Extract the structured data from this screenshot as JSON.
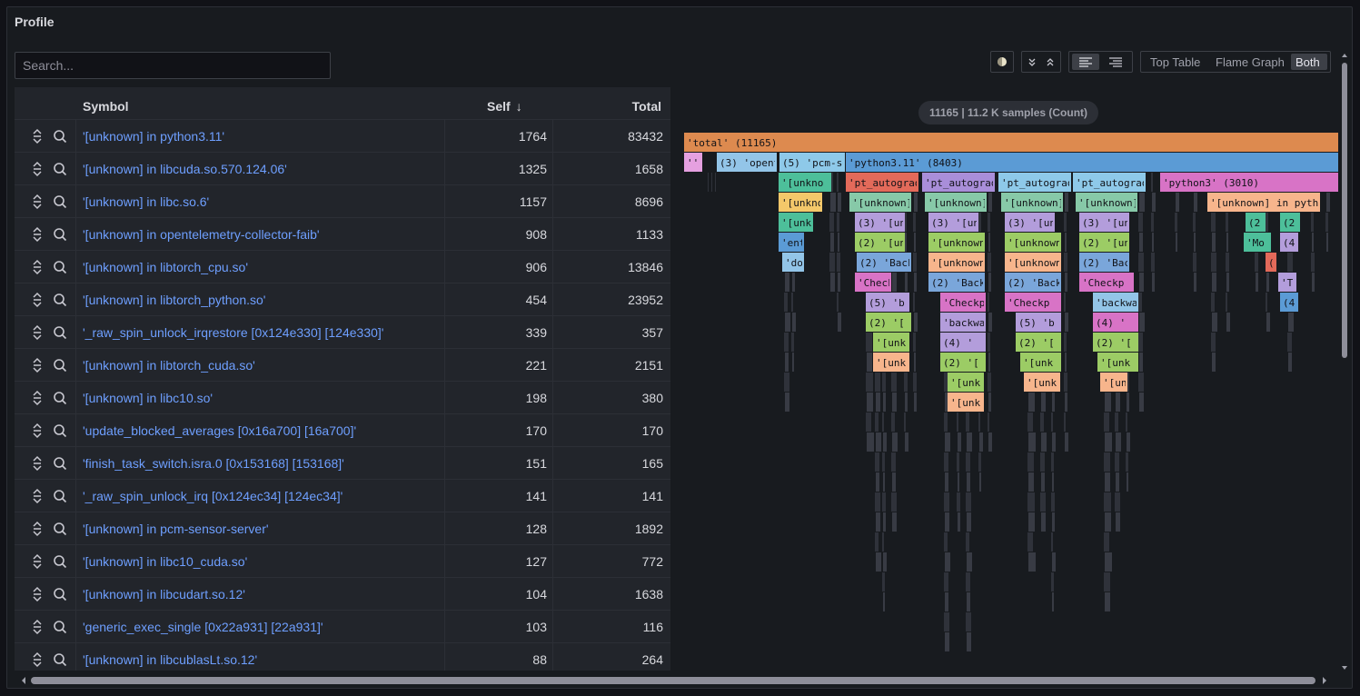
{
  "panel": {
    "title": "Profile"
  },
  "search": {
    "placeholder": "Search..."
  },
  "table": {
    "columns": {
      "symbol": "Symbol",
      "self": "Self",
      "self_sort_icon": "↓",
      "total": "Total"
    },
    "rows": [
      {
        "symbol": "'[unknown] in python3.11'",
        "self": "1764",
        "total": "83432"
      },
      {
        "symbol": "'[unknown] in libcuda.so.570.124.06'",
        "self": "1325",
        "total": "1658"
      },
      {
        "symbol": "'[unknown] in libc.so.6'",
        "self": "1157",
        "total": "8696"
      },
      {
        "symbol": "'[unknown] in opentelemetry-collector-faib'",
        "self": "908",
        "total": "1133"
      },
      {
        "symbol": "'[unknown] in libtorch_cpu.so'",
        "self": "906",
        "total": "13846"
      },
      {
        "symbol": "'[unknown] in libtorch_python.so'",
        "self": "454",
        "total": "23952"
      },
      {
        "symbol": "'_raw_spin_unlock_irqrestore [0x124e330] [124e330]'",
        "self": "339",
        "total": "357"
      },
      {
        "symbol": "'[unknown] in libtorch_cuda.so'",
        "self": "221",
        "total": "2151"
      },
      {
        "symbol": "'[unknown] in libc10.so'",
        "self": "198",
        "total": "380"
      },
      {
        "symbol": "'update_blocked_averages [0x16a700] [16a700]'",
        "self": "170",
        "total": "170"
      },
      {
        "symbol": "'finish_task_switch.isra.0 [0x153168] [153168]'",
        "self": "151",
        "total": "165"
      },
      {
        "symbol": "'_raw_spin_unlock_irq [0x124ec34] [124ec34]'",
        "self": "141",
        "total": "141"
      },
      {
        "symbol": "'[unknown] in pcm-sensor-server'",
        "self": "128",
        "total": "1892"
      },
      {
        "symbol": "'[unknown] in libc10_cuda.so'",
        "self": "127",
        "total": "772"
      },
      {
        "symbol": "'[unknown] in libcudart.so.12'",
        "self": "104",
        "total": "1638"
      },
      {
        "symbol": "'generic_exec_single [0x22a931] [22a931]'",
        "self": "103",
        "total": "116"
      },
      {
        "symbol": "'[unknown] in libcublasLt.so.12'",
        "self": "88",
        "total": "264"
      }
    ]
  },
  "view_mode": {
    "options": [
      "Top Table",
      "Flame Graph",
      "Both"
    ],
    "selected": "Both"
  },
  "flamegraph": {
    "badge": "11165 | 11.2 K samples (Count)",
    "frames": [
      {
        "level": 0,
        "label": "'total' (11165)",
        "color": "#dd8a4f"
      },
      {
        "level": 1,
        "label": "''",
        "color": "#e5a0e0"
      },
      {
        "level": 1,
        "label": "(3) 'opent",
        "color": "#93c5e8"
      },
      {
        "level": 1,
        "label": "(5) 'pcm-se",
        "color": "#8ec9e9"
      },
      {
        "level": 1,
        "label": "'python3.11' (8403)",
        "color": "#5b9bd5"
      },
      {
        "level": 2,
        "label": "'[unkno",
        "color": "#4dbf9a"
      },
      {
        "level": 2,
        "label": "'pt_autograd",
        "color": "#e36a5a"
      },
      {
        "level": 2,
        "label": "'pt_autograd",
        "color": "#a98ed9"
      },
      {
        "level": 2,
        "label": "'pt_autograd",
        "color": "#8ec9e9"
      },
      {
        "level": 2,
        "label": "'pt_autograd",
        "color": "#8ec9e9"
      },
      {
        "level": 2,
        "label": "'python3' (3010)",
        "color": "#d873c6"
      },
      {
        "level": 3,
        "label": "'[unkno",
        "color": "#f4c86a"
      },
      {
        "level": 3,
        "label": "'[unknown]",
        "color": "#87c9a8"
      },
      {
        "level": 3,
        "label": "'[unknown]",
        "color": "#87c9a8"
      },
      {
        "level": 3,
        "label": "'[unknown]",
        "color": "#87c9a8"
      },
      {
        "level": 3,
        "label": "'[unknown]",
        "color": "#87c9a8"
      },
      {
        "level": 3,
        "label": "'[unknown] in python",
        "color": "#f7b58c"
      },
      {
        "level": 4,
        "label": "'[unkr",
        "color": "#4dbf9a"
      },
      {
        "level": 4,
        "label": "(3) '[unk",
        "color": "#b39ddb"
      },
      {
        "level": 4,
        "label": "(3) '[unk",
        "color": "#b39ddb"
      },
      {
        "level": 4,
        "label": "(3) '[unk",
        "color": "#b39ddb"
      },
      {
        "level": 4,
        "label": "(3) '[unk",
        "color": "#b39ddb"
      },
      {
        "level": 4,
        "label": "(2",
        "color": "#4dbf9a"
      },
      {
        "level": 4,
        "label": "(2",
        "color": "#4dbf9a"
      },
      {
        "level": 5,
        "label": "'ent",
        "color": "#5b9bd5"
      },
      {
        "level": 5,
        "label": "(2) '[unl",
        "color": "#9ccc65"
      },
      {
        "level": 5,
        "label": "'[unknown]",
        "color": "#9ccc65"
      },
      {
        "level": 5,
        "label": "'[unknown]",
        "color": "#9ccc65"
      },
      {
        "level": 5,
        "label": "(2) '[unl",
        "color": "#9ccc65"
      },
      {
        "level": 5,
        "label": "'Mo",
        "color": "#4dbf9a"
      },
      {
        "level": 5,
        "label": "(4",
        "color": "#b39ddb"
      },
      {
        "level": 6,
        "label": "'do",
        "color": "#93c5e8"
      },
      {
        "level": 6,
        "label": "(2) 'Back",
        "color": "#7aa6da"
      },
      {
        "level": 6,
        "label": "'[unknown]",
        "color": "#f7b58c"
      },
      {
        "level": 6,
        "label": "'[unknown]",
        "color": "#f7b58c"
      },
      {
        "level": 6,
        "label": "(2) 'Back",
        "color": "#7aa6da"
      },
      {
        "level": 6,
        "label": "(3",
        "color": "#e36a5a"
      },
      {
        "level": 7,
        "label": "'Checkp",
        "color": "#d873c6"
      },
      {
        "level": 7,
        "label": "(2) 'Back",
        "color": "#7aa6da"
      },
      {
        "level": 7,
        "label": "(2) 'Back",
        "color": "#7aa6da"
      },
      {
        "level": 7,
        "label": "'Checkp",
        "color": "#d873c6"
      },
      {
        "level": 7,
        "label": "'Tr",
        "color": "#b39ddb"
      },
      {
        "level": 8,
        "label": "(5) 'b",
        "color": "#b39ddb"
      },
      {
        "level": 8,
        "label": "'Checkp",
        "color": "#d873c6"
      },
      {
        "level": 8,
        "label": "'Checkp",
        "color": "#d873c6"
      },
      {
        "level": 8,
        "label": "'backwa",
        "color": "#93c5e8"
      },
      {
        "level": 8,
        "label": "(4",
        "color": "#5b9bd5"
      },
      {
        "level": 9,
        "label": "(2) '[",
        "color": "#9ccc65"
      },
      {
        "level": 9,
        "label": "'backwa",
        "color": "#b39ddb"
      },
      {
        "level": 9,
        "label": "(5) 'b",
        "color": "#b39ddb"
      },
      {
        "level": 9,
        "label": "(4) '",
        "color": "#d873c6"
      },
      {
        "level": 10,
        "label": "'[unk",
        "color": "#9ccc65"
      },
      {
        "level": 10,
        "label": "(4) '",
        "color": "#b39ddb"
      },
      {
        "level": 10,
        "label": "(2) '[",
        "color": "#9ccc65"
      },
      {
        "level": 10,
        "label": "(2) '[",
        "color": "#9ccc65"
      },
      {
        "level": 11,
        "label": "'[unk",
        "color": "#f7b58c"
      },
      {
        "level": 11,
        "label": "(2) '[",
        "color": "#9ccc65"
      },
      {
        "level": 11,
        "label": "'[unk",
        "color": "#9ccc65"
      },
      {
        "level": 11,
        "label": "'[unk",
        "color": "#9ccc65"
      },
      {
        "level": 12,
        "label": "'[unk",
        "color": "#9ccc65"
      },
      {
        "level": 12,
        "label": "'[unk",
        "color": "#f7b58c"
      },
      {
        "level": 12,
        "label": "'[unk",
        "color": "#f7b58c"
      },
      {
        "level": 13,
        "label": "'[unk",
        "color": "#f7b58c"
      }
    ]
  }
}
